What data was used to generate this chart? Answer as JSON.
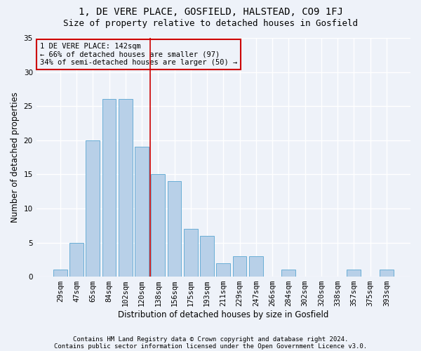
{
  "title": "1, DE VERE PLACE, GOSFIELD, HALSTEAD, CO9 1FJ",
  "subtitle": "Size of property relative to detached houses in Gosfield",
  "xlabel": "Distribution of detached houses by size in Gosfield",
  "ylabel": "Number of detached properties",
  "categories": [
    "29sqm",
    "47sqm",
    "65sqm",
    "84sqm",
    "102sqm",
    "120sqm",
    "138sqm",
    "156sqm",
    "175sqm",
    "193sqm",
    "211sqm",
    "229sqm",
    "247sqm",
    "266sqm",
    "284sqm",
    "302sqm",
    "320sqm",
    "338sqm",
    "357sqm",
    "375sqm",
    "393sqm"
  ],
  "values": [
    1,
    5,
    20,
    26,
    26,
    19,
    15,
    14,
    7,
    6,
    2,
    3,
    3,
    0,
    1,
    0,
    0,
    0,
    1,
    0,
    1
  ],
  "bar_color": "#b8d0e8",
  "bar_edgecolor": "#6aaed6",
  "ylim": [
    0,
    35
  ],
  "yticks": [
    0,
    5,
    10,
    15,
    20,
    25,
    30,
    35
  ],
  "property_line_x": 5.5,
  "property_line_color": "#cc0000",
  "annotation_box_text": "1 DE VERE PLACE: 142sqm\n← 66% of detached houses are smaller (97)\n34% of semi-detached houses are larger (50) →",
  "footer_line1": "Contains HM Land Registry data © Crown copyright and database right 2024.",
  "footer_line2": "Contains public sector information licensed under the Open Government Licence v3.0.",
  "bg_color": "#eef2f9",
  "grid_color": "#ffffff",
  "title_fontsize": 10,
  "subtitle_fontsize": 9,
  "axis_label_fontsize": 8.5,
  "tick_fontsize": 7.5,
  "annotation_fontsize": 7.5,
  "footer_fontsize": 6.5
}
